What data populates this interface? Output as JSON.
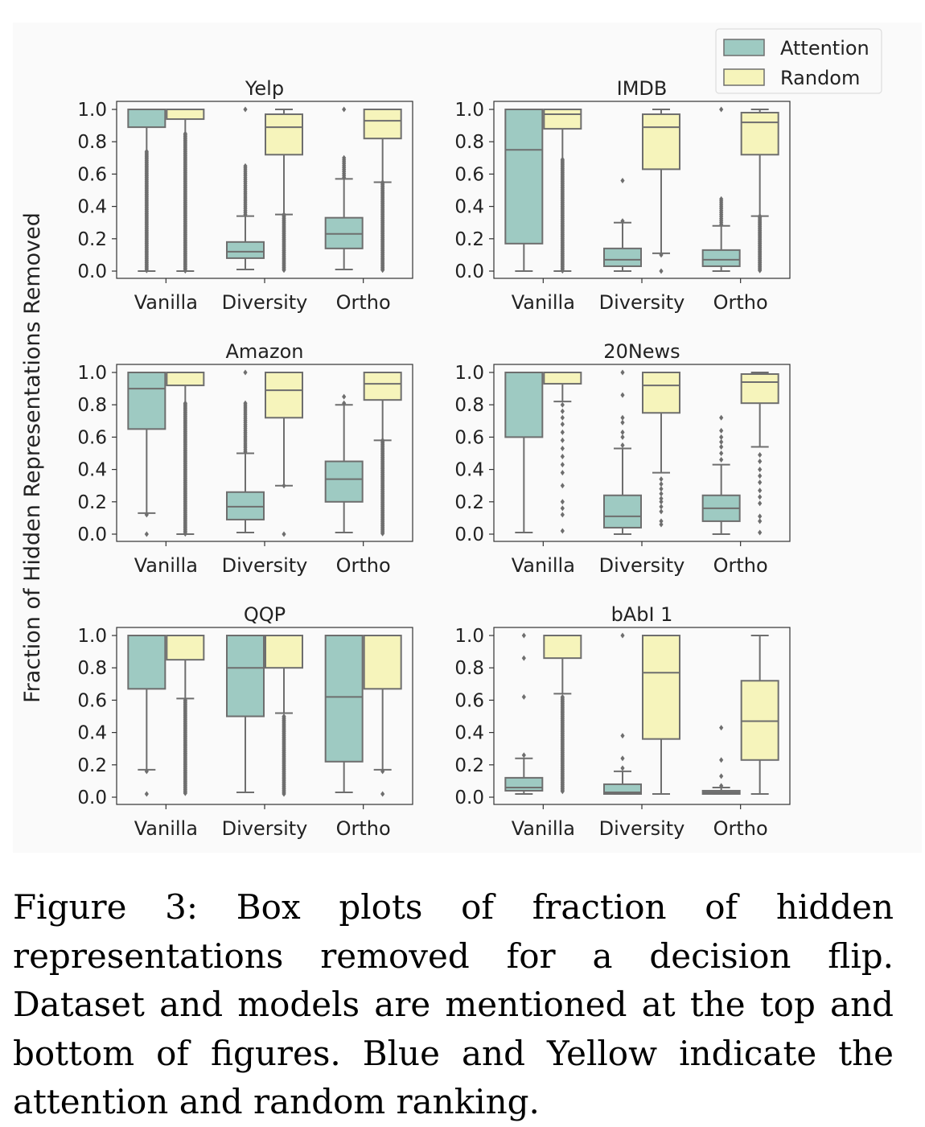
{
  "figure": {
    "ylabel": "Fraction of Hidden Representations Removed",
    "caption": "Figure 3:  Box plots of fraction of hidden representations removed for a decision flip.  Dataset and models are mentioned at the top and bottom of figures.  Blue and Yellow indicate the attention and random ranking."
  },
  "legend": {
    "placement": "top-right",
    "items": [
      {
        "label": "Attention",
        "color": "#9ecac2"
      },
      {
        "label": "Random",
        "color": "#f6f4bb"
      }
    ]
  },
  "colors": {
    "attention": "#9ecac2",
    "random": "#f6f4bb",
    "edge": "#6e6e6e",
    "background": "#fafafa"
  },
  "chart_data": [
    {
      "type": "box",
      "title": "Yelp",
      "categories": [
        "Vanilla",
        "Diversity",
        "Ortho"
      ],
      "ylim": [
        0,
        1.0
      ],
      "yticks": [
        "0.0",
        "0.2",
        "0.4",
        "0.6",
        "0.8",
        "1.0"
      ],
      "series": [
        {
          "name": "Attention",
          "boxes": [
            {
              "whislo": 0.0,
              "q1": 0.89,
              "med": 1.0,
              "q3": 1.0,
              "whishi": 1.0,
              "outliers": [
                0.74,
                0.0
              ]
            },
            {
              "whislo": 0.01,
              "q1": 0.08,
              "med": 0.12,
              "q3": 0.18,
              "whishi": 0.34,
              "outliers": [
                0.35,
                0.65,
                1.0
              ]
            },
            {
              "whislo": 0.01,
              "q1": 0.14,
              "med": 0.23,
              "q3": 0.33,
              "whishi": 0.57,
              "outliers": [
                0.58,
                0.7,
                1.0
              ]
            }
          ]
        },
        {
          "name": "Random",
          "boxes": [
            {
              "whislo": 0.0,
              "q1": 0.94,
              "med": 1.0,
              "q3": 1.0,
              "whishi": 1.0,
              "outliers": [
                0.85,
                0.0
              ]
            },
            {
              "whislo": 0.35,
              "q1": 0.72,
              "med": 0.89,
              "q3": 0.97,
              "whishi": 1.0,
              "outliers": [
                0.35,
                0.0
              ]
            },
            {
              "whislo": 0.55,
              "q1": 0.82,
              "med": 0.93,
              "q3": 1.0,
              "whishi": 1.0,
              "outliers": [
                0.55,
                0.0
              ]
            }
          ]
        }
      ]
    },
    {
      "type": "box",
      "title": "IMDB",
      "categories": [
        "Vanilla",
        "Diversity",
        "Ortho"
      ],
      "ylim": [
        0,
        1.0
      ],
      "yticks": [
        "0.0",
        "0.2",
        "0.4",
        "0.6",
        "0.8",
        "1.0"
      ],
      "series": [
        {
          "name": "Attention",
          "boxes": [
            {
              "whislo": 0.0,
              "q1": 0.17,
              "med": 0.75,
              "q3": 1.0,
              "whishi": 1.0,
              "outliers": []
            },
            {
              "whislo": 0.0,
              "q1": 0.03,
              "med": 0.07,
              "q3": 0.14,
              "whishi": 0.3,
              "outliers": [
                0.31,
                0.56
              ]
            },
            {
              "whislo": 0.0,
              "q1": 0.03,
              "med": 0.07,
              "q3": 0.13,
              "whishi": 0.28,
              "outliers": [
                0.29,
                0.45,
                1.0
              ]
            }
          ]
        },
        {
          "name": "Random",
          "boxes": [
            {
              "whislo": 0.0,
              "q1": 0.88,
              "med": 0.97,
              "q3": 1.0,
              "whishi": 1.0,
              "outliers": [
                0.69,
                0.0
              ]
            },
            {
              "whislo": 0.11,
              "q1": 0.63,
              "med": 0.89,
              "q3": 0.97,
              "whishi": 1.0,
              "outliers": [
                0.1,
                0.0
              ]
            },
            {
              "whislo": 0.34,
              "q1": 0.72,
              "med": 0.92,
              "q3": 0.98,
              "whishi": 1.0,
              "outliers": [
                0.34,
                0.0
              ]
            }
          ]
        }
      ]
    },
    {
      "type": "box",
      "title": "Amazon",
      "categories": [
        "Vanilla",
        "Diversity",
        "Ortho"
      ],
      "ylim": [
        0,
        1.0
      ],
      "yticks": [
        "0.0",
        "0.2",
        "0.4",
        "0.6",
        "0.8",
        "1.0"
      ],
      "series": [
        {
          "name": "Attention",
          "boxes": [
            {
              "whislo": 0.13,
              "q1": 0.65,
              "med": 0.9,
              "q3": 1.0,
              "whishi": 1.0,
              "outliers": [
                0.12,
                0.0
              ]
            },
            {
              "whislo": 0.01,
              "q1": 0.09,
              "med": 0.17,
              "q3": 0.26,
              "whishi": 0.5,
              "outliers": [
                0.51,
                0.81,
                1.0
              ]
            },
            {
              "whislo": 0.01,
              "q1": 0.2,
              "med": 0.34,
              "q3": 0.45,
              "whishi": 0.8,
              "outliers": [
                0.81,
                0.85
              ]
            }
          ]
        },
        {
          "name": "Random",
          "boxes": [
            {
              "whislo": 0.0,
              "q1": 0.92,
              "med": 1.0,
              "q3": 1.0,
              "whishi": 1.0,
              "outliers": [
                0.81,
                0.0
              ]
            },
            {
              "whislo": 0.3,
              "q1": 0.72,
              "med": 0.89,
              "q3": 1.0,
              "whishi": 1.0,
              "outliers": [
                0.3,
                0.0
              ]
            },
            {
              "whislo": 0.58,
              "q1": 0.83,
              "med": 0.93,
              "q3": 1.0,
              "whishi": 1.0,
              "outliers": [
                0.58,
                0.0
              ]
            }
          ]
        }
      ]
    },
    {
      "type": "box",
      "title": "20News",
      "categories": [
        "Vanilla",
        "Diversity",
        "Ortho"
      ],
      "ylim": [
        0,
        1.0
      ],
      "yticks": [
        "0.0",
        "0.2",
        "0.4",
        "0.6",
        "0.8",
        "1.0"
      ],
      "series": [
        {
          "name": "Attention",
          "boxes": [
            {
              "whislo": 0.01,
              "q1": 0.6,
              "med": 1.0,
              "q3": 1.0,
              "whishi": 1.0,
              "outliers": []
            },
            {
              "whislo": 0.0,
              "q1": 0.04,
              "med": 0.11,
              "q3": 0.24,
              "whishi": 0.53,
              "outliers": [
                0.55,
                0.6,
                0.63,
                0.69,
                0.72,
                0.86,
                1.0
              ]
            },
            {
              "whislo": 0.0,
              "q1": 0.08,
              "med": 0.16,
              "q3": 0.24,
              "whishi": 0.43,
              "outliers": [
                0.46,
                0.5,
                0.54,
                0.57,
                0.6,
                0.64,
                0.72
              ]
            }
          ]
        },
        {
          "name": "Random",
          "boxes": [
            {
              "whislo": 0.82,
              "q1": 0.93,
              "med": 1.0,
              "q3": 1.0,
              "whishi": 1.0,
              "outliers": [
                0.8,
                0.76,
                0.72,
                0.68,
                0.63,
                0.58,
                0.53,
                0.48,
                0.43,
                0.38,
                0.3,
                0.2,
                0.16,
                0.12,
                0.02
              ]
            },
            {
              "whislo": 0.38,
              "q1": 0.75,
              "med": 0.92,
              "q3": 1.0,
              "whishi": 1.0,
              "outliers": [
                0.34,
                0.31,
                0.28,
                0.25,
                0.22,
                0.2,
                0.17,
                0.14,
                0.08,
                0.06
              ]
            },
            {
              "whislo": 0.54,
              "q1": 0.81,
              "med": 0.94,
              "q3": 0.99,
              "whishi": 1.0,
              "outliers": [
                0.49,
                0.45,
                0.4,
                0.36,
                0.32,
                0.27,
                0.23,
                0.19,
                0.11,
                0.08,
                0.01
              ]
            }
          ]
        }
      ]
    },
    {
      "type": "box",
      "title": "QQP",
      "categories": [
        "Vanilla",
        "Diversity",
        "Ortho"
      ],
      "ylim": [
        0,
        1.0
      ],
      "yticks": [
        "0.0",
        "0.2",
        "0.4",
        "0.6",
        "0.8",
        "1.0"
      ],
      "series": [
        {
          "name": "Attention",
          "boxes": [
            {
              "whislo": 0.17,
              "q1": 0.67,
              "med": 1.0,
              "q3": 1.0,
              "whishi": 1.0,
              "outliers": [
                0.16,
                0.02
              ]
            },
            {
              "whislo": 0.03,
              "q1": 0.5,
              "med": 0.8,
              "q3": 1.0,
              "whishi": 1.0,
              "outliers": []
            },
            {
              "whislo": 0.03,
              "q1": 0.22,
              "med": 0.62,
              "q3": 1.0,
              "whishi": 1.0,
              "outliers": []
            }
          ]
        },
        {
          "name": "Random",
          "boxes": [
            {
              "whislo": 0.61,
              "q1": 0.85,
              "med": 1.0,
              "q3": 1.0,
              "whishi": 1.0,
              "outliers": [
                0.6,
                0.02
              ]
            },
            {
              "whislo": 0.52,
              "q1": 0.8,
              "med": 1.0,
              "q3": 1.0,
              "whishi": 1.0,
              "outliers": [
                0.5,
                0.02
              ]
            },
            {
              "whislo": 0.17,
              "q1": 0.67,
              "med": 1.0,
              "q3": 1.0,
              "whishi": 1.0,
              "outliers": [
                0.16,
                0.02
              ]
            }
          ]
        }
      ]
    },
    {
      "type": "box",
      "title": "bAbI 1",
      "categories": [
        "Vanilla",
        "Diversity",
        "Ortho"
      ],
      "ylim": [
        0,
        1.0
      ],
      "yticks": [
        "0.0",
        "0.2",
        "0.4",
        "0.6",
        "0.8",
        "1.0"
      ],
      "series": [
        {
          "name": "Attention",
          "boxes": [
            {
              "whislo": 0.02,
              "q1": 0.04,
              "med": 0.06,
              "q3": 0.12,
              "whishi": 0.24,
              "outliers": [
                0.26,
                0.62,
                0.86,
                1.0
              ]
            },
            {
              "whislo": 0.02,
              "q1": 0.02,
              "med": 0.03,
              "q3": 0.08,
              "whishi": 0.16,
              "outliers": [
                0.18,
                0.24,
                0.38,
                1.0
              ]
            },
            {
              "whislo": 0.02,
              "q1": 0.02,
              "med": 0.03,
              "q3": 0.04,
              "whishi": 0.06,
              "outliers": [
                0.07,
                0.13,
                0.23,
                0.43
              ]
            }
          ]
        },
        {
          "name": "Random",
          "boxes": [
            {
              "whislo": 0.64,
              "q1": 0.86,
              "med": 1.0,
              "q3": 1.0,
              "whishi": 1.0,
              "outliers": [
                0.62,
                0.03
              ]
            },
            {
              "whislo": 0.02,
              "q1": 0.36,
              "med": 0.77,
              "q3": 1.0,
              "whishi": 1.0,
              "outliers": []
            },
            {
              "whislo": 0.02,
              "q1": 0.23,
              "med": 0.47,
              "q3": 0.72,
              "whishi": 1.0,
              "outliers": []
            }
          ]
        }
      ]
    }
  ]
}
